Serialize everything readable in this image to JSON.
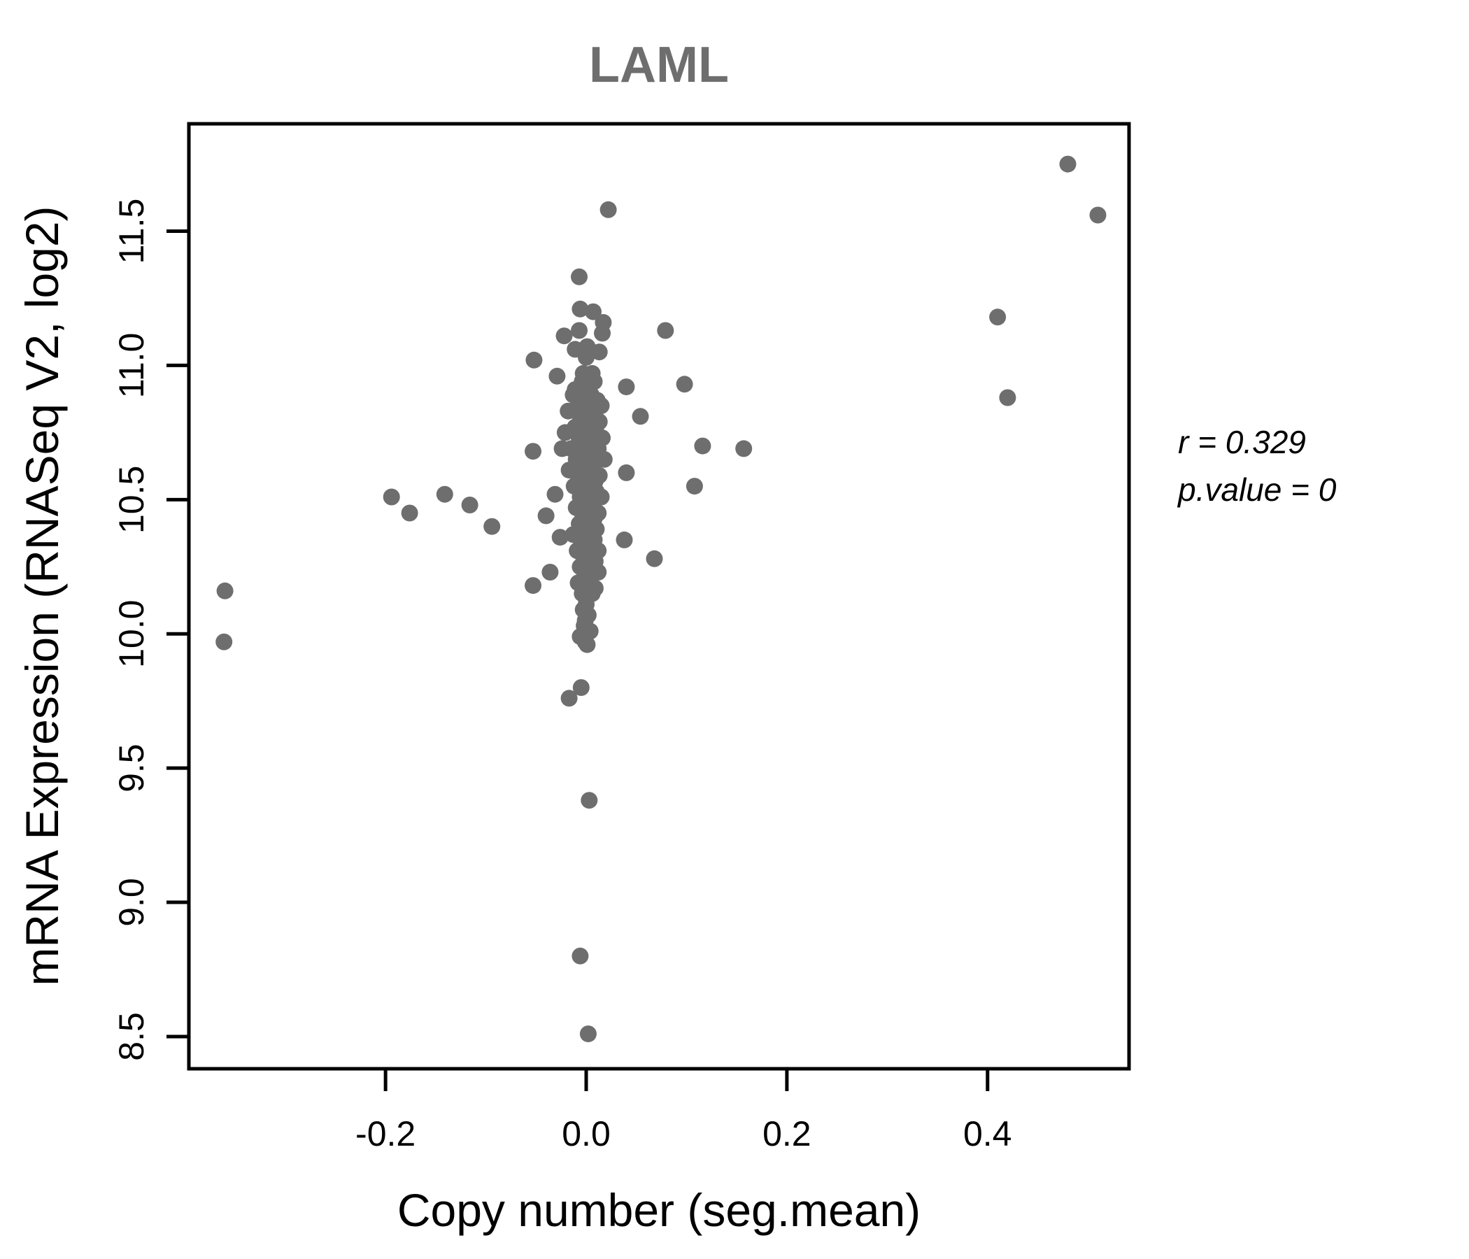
{
  "annotation": {
    "line1": "r = 0.329",
    "line2": "p.value = 0"
  },
  "colors": {
    "point": "#6e6e6e",
    "title": "#6e6e6e",
    "axis": "#000000",
    "background": "#ffffff"
  },
  "chart_data": {
    "type": "scatter",
    "title": "LAML",
    "xlabel": "Copy number (seg.mean)",
    "ylabel": "mRNA Expression (RNASeq V2, log2)",
    "x_ticks": [
      -0.2,
      0.0,
      0.2,
      0.4
    ],
    "y_ticks": [
      8.5,
      9.0,
      9.5,
      10.0,
      10.5,
      11.0,
      11.5
    ],
    "xlim": [
      -0.396,
      0.541
    ],
    "ylim": [
      8.38,
      11.9
    ],
    "legend": "none",
    "grid": false,
    "correlation_r": 0.329,
    "p_value": 0,
    "points": [
      [
        0.48,
        11.75
      ],
      [
        0.51,
        11.56
      ],
      [
        0.41,
        11.18
      ],
      [
        0.42,
        10.88
      ],
      [
        -0.36,
        10.16
      ],
      [
        -0.361,
        9.97
      ],
      [
        -0.194,
        10.51
      ],
      [
        -0.176,
        10.45
      ],
      [
        -0.141,
        10.52
      ],
      [
        -0.116,
        10.48
      ],
      [
        -0.094,
        10.4
      ],
      [
        0.079,
        11.13
      ],
      [
        0.098,
        10.93
      ],
      [
        0.116,
        10.7
      ],
      [
        0.157,
        10.69
      ],
      [
        0.108,
        10.55
      ],
      [
        0.068,
        10.28
      ],
      [
        0.022,
        11.58
      ],
      [
        0.054,
        10.81
      ],
      [
        0.003,
        9.38
      ],
      [
        -0.005,
        9.8
      ],
      [
        -0.017,
        9.76
      ],
      [
        -0.006,
        8.8
      ],
      [
        0.002,
        8.51
      ],
      [
        -0.007,
        11.33
      ],
      [
        -0.006,
        11.21
      ],
      [
        0.007,
        11.2
      ],
      [
        0.017,
        11.16
      ],
      [
        -0.007,
        11.13
      ],
      [
        0.016,
        11.12
      ],
      [
        -0.022,
        11.11
      ],
      [
        -0.011,
        11.06
      ],
      [
        0.001,
        11.07
      ],
      [
        0.013,
        11.05
      ],
      [
        -0.052,
        11.02
      ],
      [
        -0.029,
        10.96
      ],
      [
        0.0,
        11.03
      ],
      [
        -0.003,
        10.97
      ],
      [
        0.006,
        10.97
      ],
      [
        0.04,
        10.92
      ],
      [
        -0.011,
        10.91
      ],
      [
        -0.053,
        10.68
      ],
      [
        -0.024,
        10.69
      ],
      [
        0.04,
        10.6
      ],
      [
        -0.031,
        10.52
      ],
      [
        -0.04,
        10.44
      ],
      [
        0.038,
        10.35
      ],
      [
        -0.036,
        10.23
      ],
      [
        -0.053,
        10.18
      ],
      [
        -0.026,
        10.36
      ],
      [
        0.0,
        10.11
      ],
      [
        -0.001,
        10.05
      ],
      [
        0.0,
        10.0
      ],
      [
        -0.001,
        9.97
      ],
      [
        -0.004,
        10.94
      ],
      [
        0.008,
        10.94
      ],
      [
        0.002,
        10.91
      ],
      [
        -0.013,
        10.89
      ],
      [
        0.005,
        10.89
      ],
      [
        -0.002,
        10.87
      ],
      [
        0.011,
        10.87
      ],
      [
        -0.008,
        10.85
      ],
      [
        0.003,
        10.85
      ],
      [
        0.015,
        10.85
      ],
      [
        -0.018,
        10.83
      ],
      [
        0.001,
        10.83
      ],
      [
        -0.006,
        10.81
      ],
      [
        0.009,
        10.81
      ],
      [
        -0.001,
        10.79
      ],
      [
        0.013,
        10.79
      ],
      [
        -0.011,
        10.77
      ],
      [
        0.004,
        10.77
      ],
      [
        -0.021,
        10.75
      ],
      [
        0.0,
        10.75
      ],
      [
        0.01,
        10.75
      ],
      [
        -0.007,
        10.73
      ],
      [
        0.016,
        10.73
      ],
      [
        -0.002,
        10.71
      ],
      [
        0.006,
        10.71
      ],
      [
        -0.015,
        10.69
      ],
      [
        0.002,
        10.69
      ],
      [
        0.012,
        10.69
      ],
      [
        -0.005,
        10.67
      ],
      [
        0.008,
        10.67
      ],
      [
        -0.01,
        10.65
      ],
      [
        0.0,
        10.65
      ],
      [
        0.018,
        10.65
      ],
      [
        -0.003,
        10.63
      ],
      [
        0.007,
        10.63
      ],
      [
        -0.017,
        10.61
      ],
      [
        0.004,
        10.61
      ],
      [
        -0.008,
        10.59
      ],
      [
        0.001,
        10.59
      ],
      [
        0.013,
        10.59
      ],
      [
        -0.002,
        10.57
      ],
      [
        0.009,
        10.57
      ],
      [
        -0.012,
        10.55
      ],
      [
        0.005,
        10.55
      ],
      [
        0.0,
        10.53
      ],
      [
        0.01,
        10.53
      ],
      [
        -0.006,
        10.51
      ],
      [
        0.015,
        10.51
      ],
      [
        -0.001,
        10.49
      ],
      [
        0.007,
        10.49
      ],
      [
        -0.01,
        10.47
      ],
      [
        0.003,
        10.47
      ],
      [
        -0.004,
        10.45
      ],
      [
        0.012,
        10.45
      ],
      [
        0.001,
        10.43
      ],
      [
        0.008,
        10.43
      ],
      [
        -0.007,
        10.41
      ],
      [
        0.004,
        10.41
      ],
      [
        -0.002,
        10.39
      ],
      [
        0.01,
        10.39
      ],
      [
        -0.013,
        10.37
      ],
      [
        0.006,
        10.37
      ],
      [
        0.0,
        10.35
      ],
      [
        0.008,
        10.35
      ],
      [
        -0.005,
        10.33
      ],
      [
        0.003,
        10.33
      ],
      [
        -0.009,
        10.31
      ],
      [
        0.012,
        10.31
      ],
      [
        -0.003,
        10.29
      ],
      [
        0.005,
        10.29
      ],
      [
        0.001,
        10.27
      ],
      [
        0.009,
        10.27
      ],
      [
        -0.006,
        10.25
      ],
      [
        0.002,
        10.25
      ],
      [
        0.007,
        10.23
      ],
      [
        0.012,
        10.23
      ],
      [
        -0.002,
        10.21
      ],
      [
        0.004,
        10.21
      ],
      [
        -0.008,
        10.19
      ],
      [
        0.001,
        10.19
      ],
      [
        0.003,
        10.17
      ],
      [
        0.009,
        10.17
      ],
      [
        -0.004,
        10.15
      ],
      [
        0.006,
        10.15
      ],
      [
        0.0,
        10.13
      ],
      [
        -0.003,
        10.09
      ],
      [
        0.002,
        10.07
      ],
      [
        -0.002,
        10.03
      ],
      [
        0.004,
        10.01
      ],
      [
        -0.006,
        9.99
      ],
      [
        0.001,
        9.96
      ]
    ]
  }
}
